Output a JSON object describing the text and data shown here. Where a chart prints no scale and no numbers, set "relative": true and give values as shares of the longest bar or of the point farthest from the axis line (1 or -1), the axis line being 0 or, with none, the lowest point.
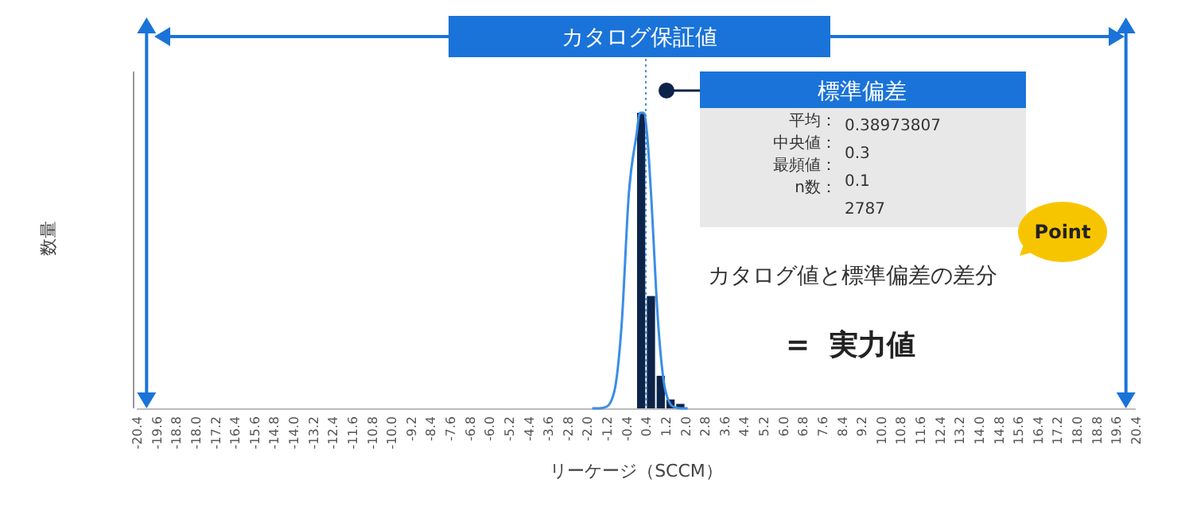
{
  "chart_data": {
    "type": "histogram",
    "relative": true,
    "bins": [
      0,
      0.4,
      0.8,
      1.2,
      1.6,
      2.0
    ],
    "values": [
      1,
      0.38,
      0.11,
      0.03,
      0.015
    ],
    "color": "#0d2449",
    "series": [
      {
        "type": "line",
        "color": "#3a8ee6",
        "x": [
          -1.8,
          -1.5,
          -1.2,
          -0.9,
          -0.6,
          -0.3,
          0,
          0.15,
          0.3,
          0.45,
          0.6,
          0.9,
          1.2,
          1.5,
          1.8,
          2.1
        ],
        "values": [
          0,
          0,
          0.006,
          0.056,
          0.28,
          0.73,
          0.92,
          1,
          1,
          0.92,
          0.73,
          0.28,
          0.056,
          0.006,
          0,
          0
        ]
      }
    ],
    "xlim": [
      -20.4,
      20.4
    ],
    "xticks": [
      -20.4,
      -19.6,
      -18.8,
      {
        "value": -18,
        "label": "-18.0"
      },
      -17.2,
      -16.4,
      -15.6,
      -14.8,
      {
        "value": -14,
        "label": "-14.0"
      },
      -13.2,
      -12.4,
      -11.6,
      -10.8,
      {
        "value": -10,
        "label": "-10.0"
      },
      -9.2,
      -8.4,
      -7.6,
      -6.8,
      {
        "value": -6,
        "label": "-6.0"
      },
      -5.2,
      -4.4,
      -3.6,
      -2.8,
      {
        "value": -2,
        "label": "-2.0"
      },
      -1.2,
      -0.4,
      0.4,
      1.2,
      {
        "value": 2,
        "label": "2.0"
      },
      2.8,
      3.6,
      4.4,
      5.2,
      {
        "value": 6,
        "label": "6.0"
      },
      6.8,
      7.6,
      8.4,
      9.2,
      {
        "value": 10,
        "label": "10.0"
      },
      10.8,
      11.6,
      12.4,
      13.2,
      {
        "value": 14,
        "label": "14.0"
      },
      14.8,
      15.6,
      16.4,
      17.2,
      {
        "value": 18,
        "label": "18.0"
      },
      18.8,
      19.6,
      20.4
    ],
    "xlabel": "リーケージ（SCCM）",
    "ylabel": "数量",
    "ref_lines": [
      {
        "axis": "x",
        "value": 0.38973807,
        "color": "#4a90d9",
        "line_style": "dotted"
      },
      {
        "axis": "x",
        "value": -20,
        "color": "#1a73d9",
        "line_style": "solid"
      },
      {
        "axis": "x",
        "value": 20,
        "color": "#1a73d9",
        "line_style": "solid"
      }
    ],
    "annotations": [
      "カタログ保証値",
      "標準偏差",
      "平均：",
      "中央値：",
      "最頻値：",
      "n数：",
      "0.38973807",
      "0.3",
      "0.1",
      "2787",
      "Point",
      "カタログ値と標準偏差の差分",
      "=  実力値"
    ]
  }
}
